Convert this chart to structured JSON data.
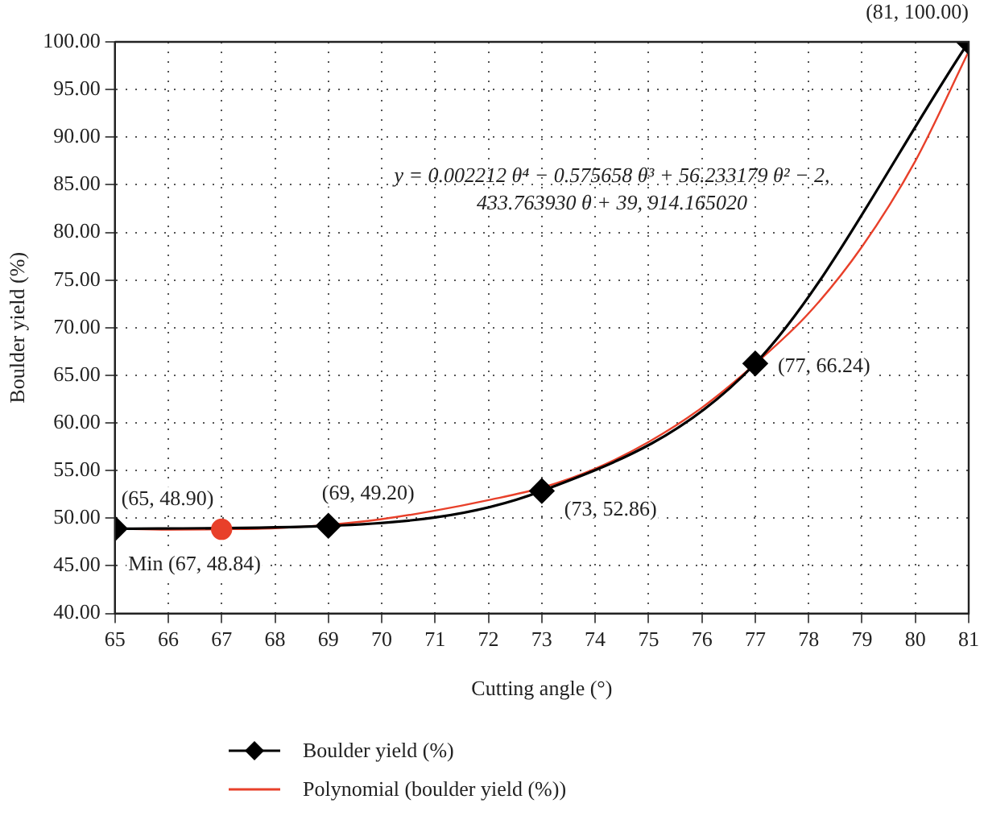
{
  "chart_data": {
    "type": "line",
    "xlabel": "Cutting angle (°)",
    "ylabel": "Boulder yield (%)",
    "xlim": [
      65,
      81
    ],
    "xticks": [
      65,
      66,
      67,
      68,
      69,
      70,
      71,
      72,
      73,
      74,
      75,
      76,
      77,
      78,
      79,
      80,
      81
    ],
    "ylim": [
      40,
      100
    ],
    "yticks": [
      {
        "value": 40,
        "label": "40.00"
      },
      {
        "value": 45,
        "label": "45.00"
      },
      {
        "value": 50,
        "label": "50.00"
      },
      {
        "value": 55,
        "label": "55.00"
      },
      {
        "value": 60,
        "label": "60.00"
      },
      {
        "value": 65,
        "label": "65.00"
      },
      {
        "value": 70,
        "label": "70.00"
      },
      {
        "value": 75,
        "label": "75.00"
      },
      {
        "value": 80,
        "label": "80.00"
      },
      {
        "value": 85,
        "label": "85.00"
      },
      {
        "value": 90,
        "label": "90.00"
      },
      {
        "value": 95,
        "label": "95.00"
      },
      {
        "value": 100,
        "label": "100.00"
      }
    ],
    "grid": true,
    "legend": "bottom",
    "series": [
      {
        "name": "Boulder yield (%)",
        "type": "line",
        "color": "#000000",
        "marker": "diamond",
        "x": [
          65,
          69,
          73,
          77,
          81
        ],
        "values": [
          48.9,
          49.2,
          52.86,
          66.24,
          100
        ]
      },
      {
        "name": "Polynomial (boulder yield (%))",
        "type": "line",
        "color": "#e8402a",
        "marker": "none",
        "x": [
          65,
          66,
          67,
          68,
          69,
          70,
          71,
          72,
          73,
          74,
          75,
          76,
          77,
          78,
          79,
          80,
          81
        ],
        "values": [
          48.9,
          48.8,
          48.84,
          48.95,
          49.3,
          49.9,
          50.8,
          51.9,
          53.2,
          55.2,
          58.0,
          61.6,
          66.2,
          71.5,
          78.5,
          87.5,
          99.0
        ]
      },
      {
        "type": "scatter",
        "color": "#e8402a",
        "marker": "circle",
        "x": [
          67
        ],
        "values": [
          48.84
        ]
      }
    ],
    "annotations": [
      {
        "text": "(65, 48.90)",
        "x": 65,
        "y": 48.9
      },
      {
        "text": "(69, 49.20)",
        "x": 69,
        "y": 49.2
      },
      {
        "text": "(73, 52.86)",
        "x": 73,
        "y": 52.86
      },
      {
        "text": "(77, 66.24)",
        "x": 77,
        "y": 66.24
      },
      {
        "text": "(81, 100.00)",
        "x": 81,
        "y": 100
      },
      {
        "text": "Min (67, 48.84)",
        "x": 67,
        "y": 48.84
      },
      "y = 0.002212 θ⁴ − 0.575658 θ³ + 56.233179 θ² − 2, 433.763930 θ + 39, 914.165020"
    ]
  }
}
